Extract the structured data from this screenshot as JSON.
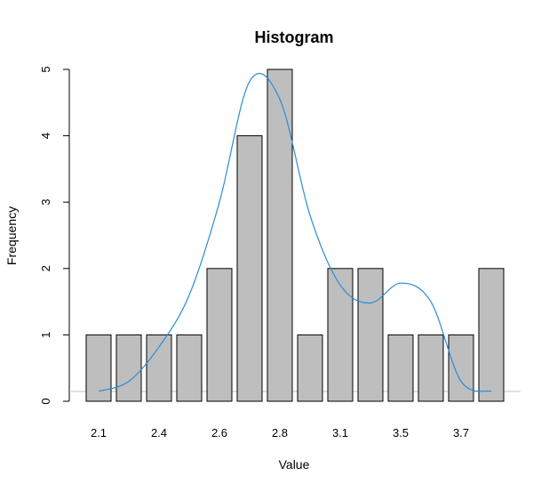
{
  "chart_data": {
    "type": "bar",
    "title": "Histogram",
    "xlabel": "Value",
    "ylabel": "Frequency",
    "ylim": [
      0,
      5
    ],
    "y_ticks": [
      0,
      1,
      2,
      3,
      4,
      5
    ],
    "x_tick_labels": [
      "2.1",
      "2.4",
      "2.6",
      "2.8",
      "3.1",
      "3.5",
      "3.7"
    ],
    "x_tick_label_bar_index": [
      0,
      2,
      4,
      6,
      8,
      10,
      12
    ],
    "values": [
      1,
      1,
      1,
      1,
      2,
      4,
      5,
      1,
      2,
      2,
      1,
      1,
      1,
      2
    ],
    "bar_color": "#bebebe",
    "density_line_color": "#2b8cd6",
    "baseline_color": "#c0c0c0",
    "density_curve": [
      [
        0,
        0.15
      ],
      [
        1,
        0.3
      ],
      [
        2,
        0.82
      ],
      [
        3,
        1.6
      ],
      [
        4,
        3.0
      ],
      [
        5,
        4.82
      ],
      [
        6,
        4.55
      ],
      [
        7,
        2.8
      ],
      [
        8,
        1.75
      ],
      [
        9,
        1.48
      ],
      [
        10,
        1.78
      ],
      [
        11,
        1.5
      ],
      [
        12,
        0.3
      ],
      [
        13,
        0.15
      ]
    ]
  }
}
